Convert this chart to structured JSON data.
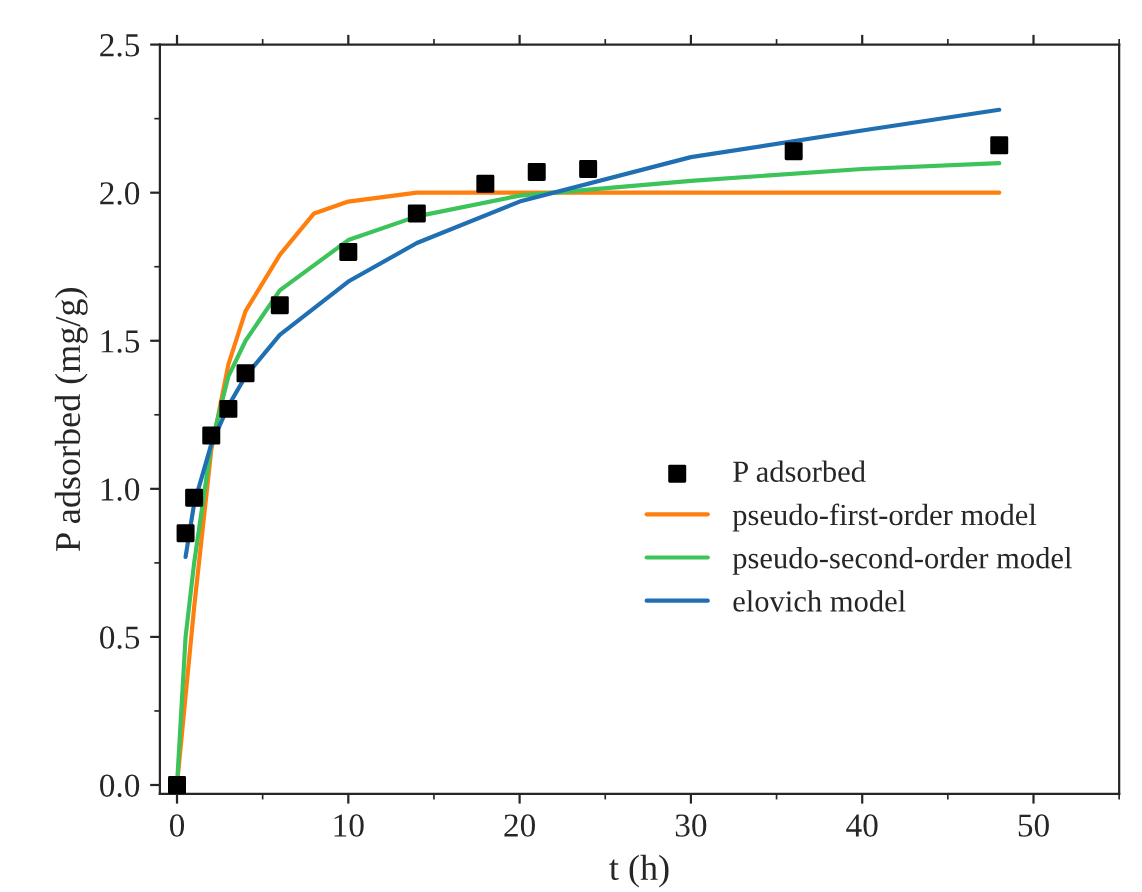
{
  "chart_data": {
    "type": "scatter",
    "xlabel": "t (h)",
    "ylabel": "P adsorbed (mg/g)",
    "xlim": [
      -1,
      55
    ],
    "ylim": [
      -0.03,
      2.5
    ],
    "xticks": [
      0,
      10,
      20,
      30,
      40,
      50
    ],
    "yticks": [
      {
        "value": 0,
        "label": "0.0"
      },
      {
        "value": 0.5,
        "label": "0.5"
      },
      {
        "value": 1,
        "label": "1.0"
      },
      {
        "value": 1.5,
        "label": "1.5"
      },
      {
        "value": 2,
        "label": "2.0"
      },
      {
        "value": 2.5,
        "label": "2.5"
      }
    ],
    "legend": "right",
    "grid": false,
    "series": [
      {
        "name": "P adsorbed",
        "marker": "square",
        "color": "#000000",
        "x": [
          0,
          0.5,
          1,
          2,
          3,
          4,
          6,
          10,
          14,
          18,
          21,
          24,
          36,
          48
        ],
        "values": [
          0,
          0.85,
          0.97,
          1.18,
          1.27,
          1.39,
          1.62,
          1.8,
          1.93,
          2.03,
          2.07,
          2.08,
          2.14,
          2.16
        ]
      },
      {
        "name": "pseudo-first-order model",
        "type": "line",
        "color": "#ff7f0e",
        "x": [
          0,
          1,
          2,
          3,
          4,
          6,
          8,
          10,
          14,
          20,
          30,
          48
        ],
        "values": [
          0,
          0.6,
          1.13,
          1.42,
          1.6,
          1.79,
          1.93,
          1.97,
          2.0,
          2.0,
          2.0,
          2.0
        ]
      },
      {
        "name": "pseudo-second-order model",
        "type": "line",
        "color": "#3cc35a",
        "x": [
          0,
          0.5,
          1,
          2,
          3,
          4,
          6,
          10,
          14,
          20,
          30,
          40,
          48
        ],
        "values": [
          0,
          0.5,
          0.75,
          1.15,
          1.38,
          1.5,
          1.67,
          1.84,
          1.92,
          1.99,
          2.04,
          2.08,
          2.1
        ]
      },
      {
        "name": "elovich model",
        "type": "line",
        "color": "#1f6fb2",
        "x": [
          0.5,
          1,
          2,
          3,
          4,
          6,
          10,
          14,
          20,
          30,
          40,
          48
        ],
        "values": [
          0.77,
          0.95,
          1.15,
          1.28,
          1.38,
          1.52,
          1.7,
          1.83,
          1.97,
          2.12,
          2.21,
          2.28
        ]
      }
    ]
  }
}
